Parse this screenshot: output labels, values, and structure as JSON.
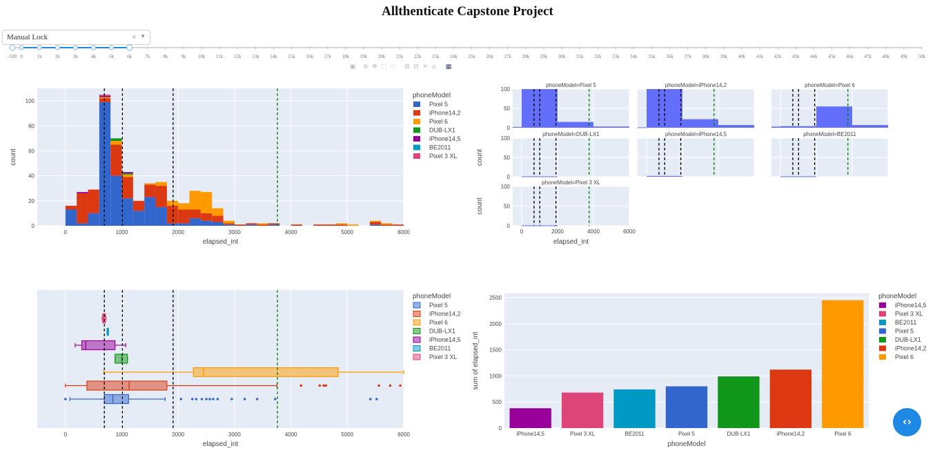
{
  "title": "Allthenticate Capstone Project",
  "dropdown": {
    "value": "Manual Lock",
    "clear_glyph": "×",
    "arrow_glyph": "▼"
  },
  "slider": {
    "min": -500,
    "max": 50000,
    "range": [
      0,
      6000
    ],
    "labels": [
      "-500",
      "0",
      "1k",
      "2k",
      "3k",
      "4k",
      "5k",
      "6k",
      "7k",
      "8k",
      "9k",
      "10k",
      "11k",
      "12k",
      "13k",
      "14k",
      "15k",
      "16k",
      "17k",
      "18k",
      "19k",
      "20k",
      "21k",
      "22k",
      "23k",
      "24k",
      "25k",
      "26k",
      "27k",
      "28k",
      "29k",
      "30k",
      "31k",
      "32k",
      "33k",
      "34k",
      "35k",
      "36k",
      "37k",
      "38k",
      "39k",
      "40k",
      "41k",
      "42k",
      "43k",
      "44k",
      "45k",
      "46k",
      "47k",
      "48k",
      "49k",
      "50k"
    ]
  },
  "modebar": {
    "icons": [
      "camera-icon",
      "zoom-icon",
      "pan-icon",
      "box-select-icon",
      "lasso-icon",
      "zoom-in-icon",
      "zoom-out-icon",
      "autoscale-icon",
      "home-icon",
      "plotly-logo-icon"
    ]
  },
  "colors": {
    "Pixel 5": "#3366cc",
    "iPhone14,2": "#dc3912",
    "Pixel 6": "#ff9900",
    "DUB-LX1": "#109618",
    "iPhone14,5": "#990099",
    "BE2011": "#0099c6",
    "Pixel 3 XL": "#dd4477",
    "facet": "#636efa"
  },
  "vlines": [
    {
      "x": 690,
      "color": "#000000"
    },
    {
      "x": 1010,
      "color": "#000000"
    },
    {
      "x": 1910,
      "color": "#000000"
    },
    {
      "x": 3760,
      "color": "#008000"
    }
  ],
  "chart_data": [
    {
      "type": "bar",
      "subtype": "stacked-histogram",
      "xlabel": "elapsed_int",
      "ylabel": "count",
      "xlim": [
        -500,
        6000
      ],
      "ylim": [
        0,
        110
      ],
      "xticks": [
        0,
        1000,
        2000,
        3000,
        4000,
        5000,
        6000
      ],
      "yticks": [
        0,
        20,
        40,
        60,
        80,
        100
      ],
      "legend_title": "phoneModel",
      "legend_position": "right",
      "legend": [
        "Pixel 5",
        "iPhone14,2",
        "Pixel 6",
        "DUB-LX1",
        "iPhone14,5",
        "BE2011",
        "Pixel 3 XL"
      ],
      "bin_width": 200,
      "bins": [
        {
          "x0": 0,
          "Pixel 5": 13,
          "iPhone14,2": 3
        },
        {
          "x0": 200,
          "Pixel 5": 2,
          "iPhone14,2": 24,
          "iPhone14,5": 1
        },
        {
          "x0": 400,
          "Pixel 5": 10,
          "iPhone14,2": 19
        },
        {
          "x0": 600,
          "Pixel 5": 99,
          "iPhone14,2": 3,
          "Pixel 6": 1,
          "iPhone14,5": 1,
          "Pixel 3 XL": 1
        },
        {
          "x0": 800,
          "Pixel 5": 40,
          "iPhone14,2": 25,
          "Pixel 6": 3,
          "DUB-LX1": 2
        },
        {
          "x0": 1000,
          "Pixel 5": 22,
          "iPhone14,2": 17,
          "Pixel 6": 2,
          "DUB-LX1": 1,
          "iPhone14,5": 1
        },
        {
          "x0": 1200,
          "Pixel 5": 12,
          "iPhone14,2": 8
        },
        {
          "x0": 1400,
          "Pixel 5": 23,
          "iPhone14,2": 10,
          "Pixel 6": 1
        },
        {
          "x0": 1600,
          "Pixel 5": 15,
          "iPhone14,2": 17,
          "Pixel 6": 3
        },
        {
          "x0": 1800,
          "Pixel 5": 2,
          "iPhone14,2": 14,
          "Pixel 6": 4
        },
        {
          "x0": 2000,
          "Pixel 5": 2,
          "iPhone14,2": 11,
          "Pixel 6": 5
        },
        {
          "x0": 2200,
          "Pixel 5": 6,
          "iPhone14,2": 7,
          "Pixel 6": 15
        },
        {
          "x0": 2400,
          "Pixel 5": 4,
          "iPhone14,2": 6,
          "Pixel 6": 17
        },
        {
          "x0": 2600,
          "Pixel 5": 3,
          "iPhone14,2": 5,
          "Pixel 6": 6
        },
        {
          "x0": 2800,
          "Pixel 5": 1,
          "iPhone14,2": 1,
          "Pixel 6": 2
        },
        {
          "x0": 3000,
          "iPhone14,2": 1
        },
        {
          "x0": 3200,
          "Pixel 5": 1,
          "iPhone14,2": 1
        },
        {
          "x0": 3400,
          "iPhone14,2": 1,
          "Pixel 6": 1
        },
        {
          "x0": 3600,
          "Pixel 5": 1,
          "iPhone14,2": 1
        },
        {
          "x0": 4000,
          "iPhone14,2": 1
        },
        {
          "x0": 4400,
          "iPhone14,2": 1
        },
        {
          "x0": 4600,
          "iPhone14,2": 1
        },
        {
          "x0": 4800,
          "iPhone14,2": 1,
          "Pixel 6": 1
        },
        {
          "x0": 5000,
          "Pixel 6": 1
        },
        {
          "x0": 5400,
          "Pixel 5": 1,
          "iPhone14,2": 2,
          "Pixel 6": 1
        },
        {
          "x0": 5600,
          "iPhone14,2": 1,
          "Pixel 6": 1
        },
        {
          "x0": 5800,
          "iPhone14,2": 1
        }
      ]
    },
    {
      "type": "bar",
      "subtype": "faceted-histogram",
      "xlabel": "elapsed_int",
      "ylabel": "count",
      "xlim": [
        -500,
        6000
      ],
      "ylim": [
        0,
        100
      ],
      "xticks": [
        0,
        2000,
        4000,
        6000
      ],
      "yticks": [
        0,
        50,
        100
      ],
      "facets": [
        {
          "title": "phoneModel=Pixel 5",
          "bins": [
            [
              -500,
              0,
              2
            ],
            [
              0,
              2000,
              100
            ],
            [
              2000,
              4000,
              15
            ],
            [
              4000,
              6000,
              3
            ]
          ]
        },
        {
          "title": "phoneModel=iPhone14,2",
          "bins": [
            [
              -500,
              0,
              1
            ],
            [
              0,
              2000,
              100
            ],
            [
              2000,
              4000,
              22
            ],
            [
              4000,
              6000,
              7
            ]
          ]
        },
        {
          "title": "phoneModel=Pixel 6",
          "bins": [
            [
              -500,
              0,
              3
            ],
            [
              0,
              2000,
              4
            ],
            [
              2000,
              4000,
              55
            ],
            [
              4000,
              6000,
              7
            ]
          ]
        },
        {
          "title": "phoneModel=DUB-LX1",
          "bins": [
            [
              0,
              2000,
              1
            ]
          ]
        },
        {
          "title": "phoneModel=iPhone14,5",
          "bins": [
            [
              0,
              2000,
              2
            ]
          ]
        },
        {
          "title": "phoneModel=BE2011",
          "bins": [
            [
              0,
              2000,
              1
            ]
          ]
        },
        {
          "title": "phoneModel=Pixel 3 XL",
          "bins": [
            [
              0,
              2000,
              1
            ]
          ]
        }
      ]
    },
    {
      "type": "box",
      "xlabel": "elapsed_int",
      "xlim": [
        -500,
        6000
      ],
      "xticks": [
        0,
        1000,
        2000,
        3000,
        4000,
        5000,
        6000
      ],
      "legend_title": "phoneModel",
      "legend": [
        "Pixel 5",
        "iPhone14,2",
        "Pixel 6",
        "DUB-LX1",
        "iPhone14,5",
        "BE2011",
        "Pixel 3 XL"
      ],
      "series": [
        {
          "name": "Pixel 5",
          "min": 80,
          "q1": 690,
          "median": 840,
          "q3": 1120,
          "max": 1770,
          "outliers": [
            0,
            2050,
            2250,
            2320,
            2420,
            2500,
            2560,
            2620,
            2700,
            2950,
            3180,
            3400,
            3720,
            5410,
            5520
          ]
        },
        {
          "name": "iPhone14,2",
          "min": 0,
          "q1": 380,
          "median": 1130,
          "q3": 1800,
          "max": 3750,
          "outliers": [
            4180,
            4510,
            4580,
            4620,
            5560,
            5760,
            5940
          ]
        },
        {
          "name": "Pixel 6",
          "min": 680,
          "q1": 2270,
          "median": 2450,
          "q3": 4840,
          "max": 6000,
          "outliers": []
        },
        {
          "name": "DUB-LX1",
          "min": 880,
          "q1": 880,
          "median": 1000,
          "q3": 1100,
          "max": 1100,
          "outliers": []
        },
        {
          "name": "iPhone14,5",
          "min": 170,
          "q1": 290,
          "median": 360,
          "q3": 880,
          "max": 1070,
          "outliers": []
        },
        {
          "name": "BE2011",
          "min": 740,
          "q1": 740,
          "median": 740,
          "q3": 750,
          "max": 750,
          "outliers": []
        },
        {
          "name": "Pixel 3 XL",
          "min": 650,
          "q1": 660,
          "median": 680,
          "q3": 710,
          "max": 720,
          "outliers": []
        }
      ]
    },
    {
      "type": "bar",
      "xlabel": "phoneModel",
      "ylabel": "sum of elapsed_int",
      "ylim": [
        0,
        2500
      ],
      "yticks": [
        0,
        500,
        1000,
        1500,
        2000,
        2500
      ],
      "legend_title": "phoneModel",
      "categories": [
        "iPhone14,5",
        "Pixel 3 XL",
        "BE2011",
        "Pixel 5",
        "DUB-LX1",
        "iPhone14,2",
        "Pixel 6"
      ],
      "values": [
        380,
        680,
        740,
        800,
        990,
        1120,
        2450
      ]
    }
  ]
}
